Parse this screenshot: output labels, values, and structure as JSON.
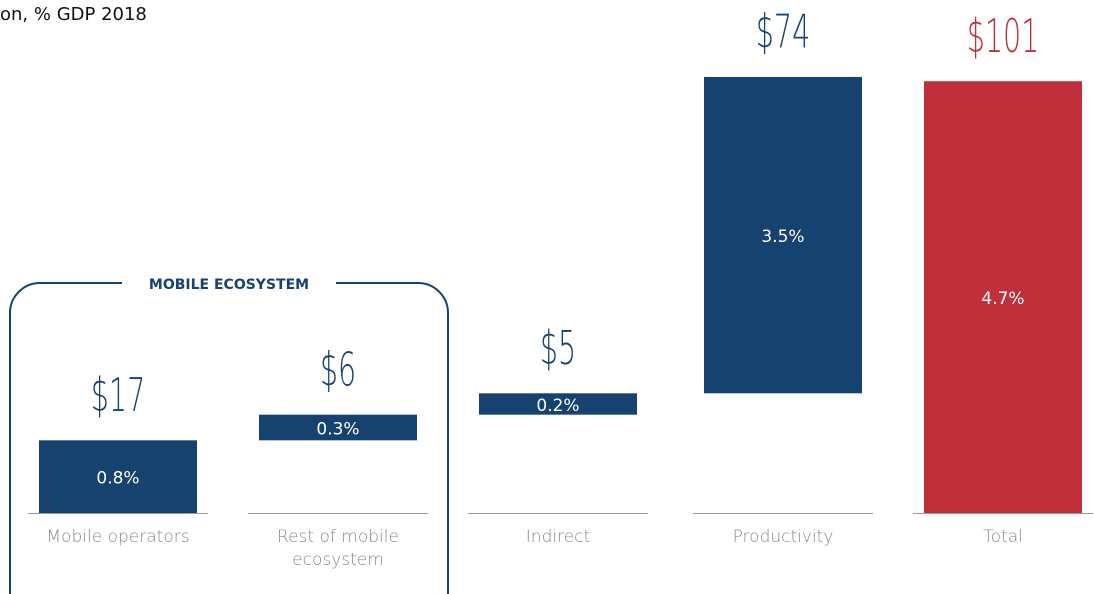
{
  "chart_data": {
    "type": "waterfall",
    "title": "on, % GDP 2018",
    "annotation": "MOBILE ECOSYSTEM",
    "categories": [
      "Mobile operators",
      "Rest of mobile ecosystem",
      "Indirect",
      "Productivity",
      "Total"
    ],
    "values": [
      17,
      6,
      5,
      74,
      101
    ],
    "value_labels": [
      "$17",
      "$6",
      "$5",
      "$74",
      "$101"
    ],
    "gdp_share": [
      0.8,
      0.3,
      0.2,
      3.5,
      4.7
    ],
    "gdp_share_labels": [
      "0.8%",
      "0.3%",
      "0.2%",
      "3.5%",
      "4.7%"
    ],
    "is_total": [
      false,
      false,
      false,
      false,
      true
    ],
    "colors": [
      "#16426f",
      "#16426f",
      "#16426f",
      "#16426f",
      "#c1303a"
    ],
    "ylim": [
      0,
      120
    ]
  }
}
